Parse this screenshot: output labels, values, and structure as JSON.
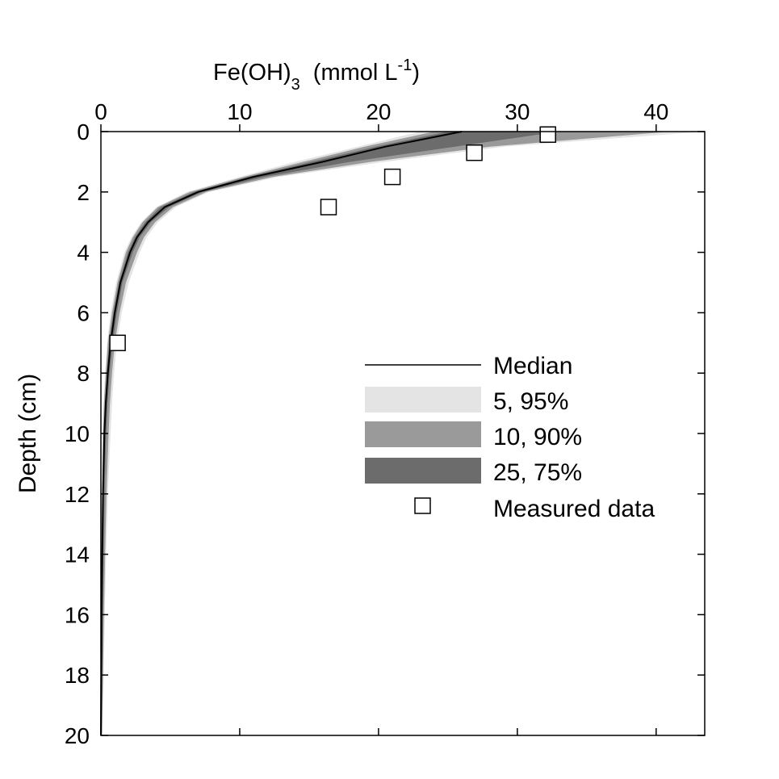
{
  "chart_data": {
    "type": "area",
    "title": "",
    "xlabel": {
      "main": "Fe(OH)",
      "sub": "3",
      "unit_pre": "(mmol L",
      "sup": "-1",
      "unit_post": ")"
    },
    "ylabel": "Depth (cm)",
    "x_axis_position": "top",
    "y_axis_inverted": true,
    "xlim": [
      0,
      43.5
    ],
    "ylim": [
      0,
      20
    ],
    "xticks": [
      0,
      10,
      20,
      30,
      40
    ],
    "yticks": [
      0,
      2,
      4,
      6,
      8,
      10,
      12,
      14,
      16,
      18,
      20
    ],
    "legend_position": "center-right",
    "legend": [
      {
        "key": "median",
        "label": "Median",
        "kind": "line"
      },
      {
        "key": "band_5_95",
        "label": "5, 95%",
        "kind": "band"
      },
      {
        "key": "band_10_90",
        "label": "10, 90%",
        "kind": "band"
      },
      {
        "key": "band_25_75",
        "label": "25, 75%",
        "kind": "band"
      },
      {
        "key": "measured",
        "label": "Measured data",
        "kind": "marker"
      }
    ],
    "colors": {
      "band_5_95": "#e4e4e4",
      "band_10_90": "#9a9a9a",
      "band_25_75": "#6c6c6c",
      "median": "#000000",
      "marker_edge": "#000000"
    },
    "depth": [
      0,
      0.5,
      1,
      1.5,
      2,
      2.5,
      3,
      3.5,
      4,
      5,
      6,
      7,
      8,
      9,
      10,
      12,
      14,
      16,
      18,
      20
    ],
    "median": [
      26.0,
      20.5,
      16.0,
      11.0,
      7.0,
      4.6,
      3.4,
      2.6,
      2.1,
      1.4,
      1.0,
      0.7,
      0.5,
      0.35,
      0.25,
      0.15,
      0.1,
      0.05,
      0.03,
      0.0
    ],
    "band_5_95": {
      "lower": [
        23.0,
        18.5,
        14.0,
        10.0,
        6.2,
        4.0,
        2.9,
        2.2,
        1.7,
        1.1,
        0.7,
        0.45,
        0.3,
        0.2,
        0.12,
        0.07,
        0.04,
        0.02,
        0.01,
        0.0
      ],
      "upper": [
        43.5,
        29.0,
        20.5,
        12.8,
        7.8,
        5.4,
        4.1,
        3.3,
        2.8,
        2.0,
        1.5,
        1.15,
        0.95,
        0.8,
        0.7,
        0.5,
        0.38,
        0.28,
        0.2,
        0.1
      ]
    },
    "band_10_90": {
      "lower": [
        24.0,
        19.0,
        14.6,
        10.3,
        6.4,
        4.1,
        3.0,
        2.3,
        1.8,
        1.2,
        0.8,
        0.5,
        0.35,
        0.22,
        0.15,
        0.09,
        0.05,
        0.03,
        0.02,
        0.0
      ],
      "upper": [
        41.0,
        28.0,
        19.5,
        12.4,
        7.6,
        5.2,
        3.9,
        3.1,
        2.6,
        1.8,
        1.35,
        1.0,
        0.8,
        0.65,
        0.55,
        0.4,
        0.3,
        0.22,
        0.15,
        0.08
      ]
    },
    "band_25_75": {
      "lower": [
        25.0,
        19.8,
        15.2,
        10.6,
        6.7,
        4.3,
        3.2,
        2.45,
        1.95,
        1.3,
        0.9,
        0.6,
        0.42,
        0.3,
        0.2,
        0.12,
        0.07,
        0.04,
        0.02,
        0.0
      ],
      "upper": [
        33.0,
        25.5,
        18.0,
        11.8,
        7.3,
        4.9,
        3.6,
        2.8,
        2.3,
        1.55,
        1.15,
        0.85,
        0.62,
        0.48,
        0.38,
        0.26,
        0.18,
        0.12,
        0.08,
        0.04
      ]
    },
    "measured": {
      "x": [
        32.2,
        26.9,
        21.0,
        16.4,
        1.2
      ],
      "y": [
        0.1,
        0.7,
        1.5,
        2.5,
        7.0
      ]
    }
  }
}
